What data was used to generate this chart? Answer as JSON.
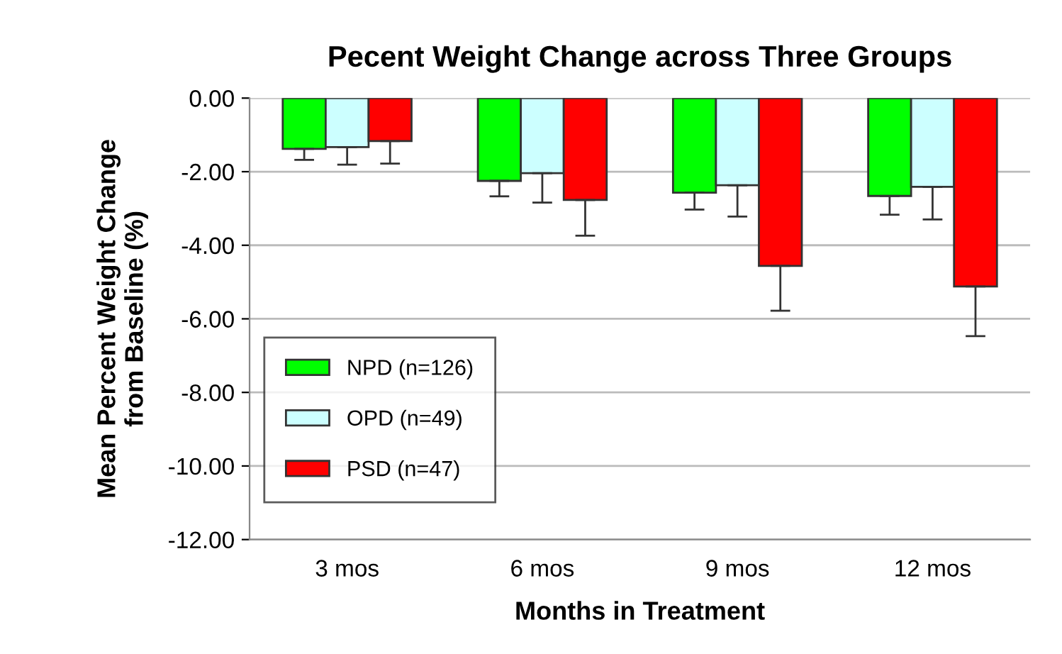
{
  "chart_data": {
    "type": "bar",
    "title": "Pecent Weight Change across Three Groups",
    "xlabel": "Months in Treatment",
    "ylabel": "Mean Percent Weight Change\nfrom Baseline (%)",
    "categories": [
      "3 mos",
      "6 mos",
      "9 mos",
      "12 mos"
    ],
    "series": [
      {
        "name": "NPD (n=126)",
        "color": "#00ff00",
        "values": [
          -1.38,
          -2.25,
          -2.57,
          -2.66
        ],
        "errors": [
          [
            -1.68,
            -1.38
          ],
          [
            -2.67,
            -2.25
          ],
          [
            -3.03,
            -2.57
          ],
          [
            -3.17,
            -2.66
          ]
        ]
      },
      {
        "name": "OPD (n=49)",
        "color": "#ccffff",
        "values": [
          -1.33,
          -2.04,
          -2.37,
          -2.41
        ],
        "errors": [
          [
            -1.81,
            -1.33
          ],
          [
            -2.84,
            -2.04
          ],
          [
            -3.22,
            -2.37
          ],
          [
            -3.3,
            -2.41
          ]
        ]
      },
      {
        "name": "PSD (n=47)",
        "color": "#ff0000",
        "values": [
          -1.17,
          -2.77,
          -4.56,
          -5.12
        ],
        "errors": [
          [
            -1.78,
            -1.17
          ],
          [
            -3.74,
            -2.77
          ],
          [
            -5.78,
            -4.56
          ],
          [
            -6.47,
            -5.12
          ]
        ]
      }
    ],
    "ylim": [
      -12,
      0
    ],
    "yticks": [
      {
        "value": -12,
        "label": "-12.00"
      },
      {
        "value": -10,
        "label": "-10.00"
      },
      {
        "value": -8,
        "label": "-8.00"
      },
      {
        "value": -6,
        "label": "-6.00"
      },
      {
        "value": -4,
        "label": "-4.00"
      },
      {
        "value": -2,
        "label": "-2.00"
      },
      {
        "value": 0,
        "label": "0.00"
      }
    ],
    "grid": "y",
    "legend": "bottom left"
  }
}
